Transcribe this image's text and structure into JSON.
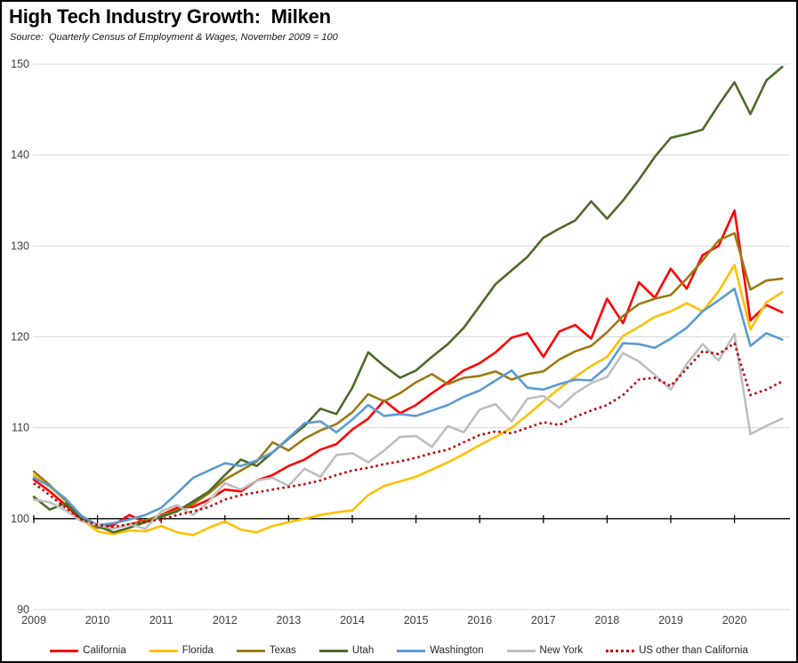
{
  "header": {
    "title": "High Tech Industry Growth:  Milken",
    "source": "Source:  Quarterly Census of Employment & Wages, November 2009 = 100"
  },
  "style": {
    "grid_color": "#D9D9D9",
    "baseline_color": "#000000",
    "tick_label_color": "#404040",
    "background": "#FFFFFF"
  },
  "chart_data": {
    "type": "line",
    "title": "High Tech Industry Growth:  Milken",
    "subtitle": "Source:  Quarterly Census of Employment & Wages, November 2009 = 100",
    "x_unit": "quarter",
    "x_start_year": 2009,
    "points_per_year": 4,
    "x_tick_labels": [
      "2009",
      "2010",
      "2011",
      "2012",
      "2013",
      "2014",
      "2015",
      "2016",
      "2017",
      "2018",
      "2019",
      "2020"
    ],
    "ylim": [
      90,
      150
    ],
    "y_ticks": [
      90,
      100,
      110,
      120,
      130,
      140,
      150
    ],
    "baseline_value": 100,
    "grid": "horizontal",
    "legend_position": "bottom",
    "series": [
      {
        "name": "California",
        "color": "#FF0000",
        "dash": "solid",
        "values": [
          104.3,
          103.0,
          101.5,
          99.8,
          99.0,
          99.3,
          100.4,
          99.6,
          100.4,
          101.2,
          101.3,
          102.1,
          103.2,
          103.0,
          104.2,
          104.8,
          105.8,
          106.5,
          107.6,
          108.2,
          109.8,
          111.0,
          113.0,
          111.6,
          112.5,
          113.8,
          115.0,
          116.3,
          117.1,
          118.3,
          119.9,
          120.4,
          117.8,
          120.6,
          121.3,
          119.8,
          124.2,
          121.5,
          126.0,
          124.3,
          127.5,
          125.3,
          129.0,
          130.0,
          133.9,
          121.8,
          123.5,
          122.7
        ]
      },
      {
        "name": "Florida",
        "color": "#FFC000",
        "dash": "solid",
        "values": [
          104.8,
          103.5,
          102.0,
          100.0,
          98.6,
          98.3,
          98.7,
          98.6,
          99.2,
          98.5,
          98.2,
          99.0,
          99.7,
          98.8,
          98.5,
          99.2,
          99.6,
          100.0,
          100.4,
          100.7,
          100.9,
          102.6,
          103.6,
          104.1,
          104.6,
          105.4,
          106.2,
          107.1,
          108.1,
          109.0,
          110.0,
          111.4,
          112.9,
          114.3,
          115.6,
          116.8,
          117.8,
          120.1,
          121.1,
          122.2,
          122.8,
          123.7,
          122.8,
          125.0,
          127.9,
          120.8,
          123.8,
          124.9
        ]
      },
      {
        "name": "Texas",
        "color": "#9C7A14",
        "dash": "solid",
        "values": [
          105.2,
          103.7,
          102.0,
          100.0,
          99.0,
          98.9,
          99.4,
          99.8,
          100.4,
          100.9,
          101.6,
          102.8,
          104.3,
          105.3,
          106.3,
          108.4,
          107.5,
          108.8,
          109.7,
          110.4,
          111.7,
          113.7,
          112.9,
          113.8,
          115.0,
          115.9,
          114.8,
          115.5,
          115.7,
          116.2,
          115.3,
          115.9,
          116.2,
          117.5,
          118.4,
          119.0,
          120.5,
          122.3,
          123.6,
          124.2,
          124.6,
          126.4,
          128.4,
          130.6,
          131.4,
          125.2,
          126.2,
          126.4
        ]
      },
      {
        "name": "Utah",
        "color": "#4C6B28",
        "dash": "solid",
        "values": [
          102.4,
          101.0,
          101.7,
          100.0,
          99.2,
          98.5,
          99.0,
          99.6,
          100.2,
          100.8,
          101.9,
          103.0,
          104.8,
          106.5,
          105.8,
          107.3,
          108.8,
          110.2,
          112.1,
          111.5,
          114.4,
          118.3,
          116.8,
          115.5,
          116.3,
          117.8,
          119.2,
          121.0,
          123.4,
          125.8,
          127.3,
          128.8,
          130.9,
          131.9,
          132.8,
          134.9,
          133.0,
          135.0,
          137.3,
          139.8,
          141.9,
          142.3,
          142.8,
          145.5,
          148.0,
          144.5,
          148.2,
          149.7
        ]
      },
      {
        "name": "Washington",
        "color": "#5B9BD5",
        "dash": "solid",
        "values": [
          104.5,
          103.6,
          102.2,
          100.3,
          99.3,
          99.5,
          99.9,
          100.4,
          101.2,
          102.8,
          104.5,
          105.3,
          106.1,
          105.8,
          106.4,
          107.3,
          108.9,
          110.5,
          110.7,
          109.5,
          110.9,
          112.5,
          111.3,
          111.5,
          111.3,
          111.9,
          112.5,
          113.4,
          114.1,
          115.2,
          116.3,
          114.4,
          114.2,
          114.8,
          115.3,
          115.2,
          116.7,
          119.3,
          119.2,
          118.8,
          119.8,
          121.0,
          122.8,
          124.0,
          125.3,
          119.0,
          120.4,
          119.7
        ]
      },
      {
        "name": "New York",
        "color": "#BFBFBF",
        "dash": "solid",
        "values": [
          102.1,
          101.8,
          100.9,
          99.7,
          99.3,
          98.9,
          99.4,
          98.9,
          100.8,
          101.5,
          100.4,
          101.9,
          103.9,
          103.2,
          104.2,
          104.5,
          103.6,
          105.5,
          104.6,
          107.0,
          107.2,
          106.2,
          107.5,
          109.0,
          109.1,
          107.9,
          110.2,
          109.5,
          112.0,
          112.6,
          110.7,
          113.2,
          113.5,
          112.2,
          113.8,
          114.9,
          115.6,
          118.2,
          117.3,
          115.8,
          114.2,
          117.0,
          119.2,
          117.4,
          120.3,
          109.3,
          110.2,
          111.0
        ]
      },
      {
        "name": "US other than California",
        "color": "#C00000",
        "dash": "dotted",
        "values": [
          103.9,
          102.6,
          101.2,
          99.9,
          99.3,
          99.1,
          99.4,
          99.7,
          99.9,
          100.4,
          100.8,
          101.3,
          102.1,
          102.6,
          102.9,
          103.2,
          103.5,
          103.8,
          104.2,
          104.8,
          105.3,
          105.6,
          106.0,
          106.3,
          106.7,
          107.2,
          107.6,
          108.4,
          109.2,
          109.6,
          109.4,
          110.0,
          110.6,
          110.3,
          111.2,
          111.9,
          112.5,
          113.6,
          115.3,
          115.5,
          114.6,
          116.5,
          118.4,
          118.1,
          119.3,
          113.6,
          114.2,
          115.1
        ]
      }
    ]
  }
}
